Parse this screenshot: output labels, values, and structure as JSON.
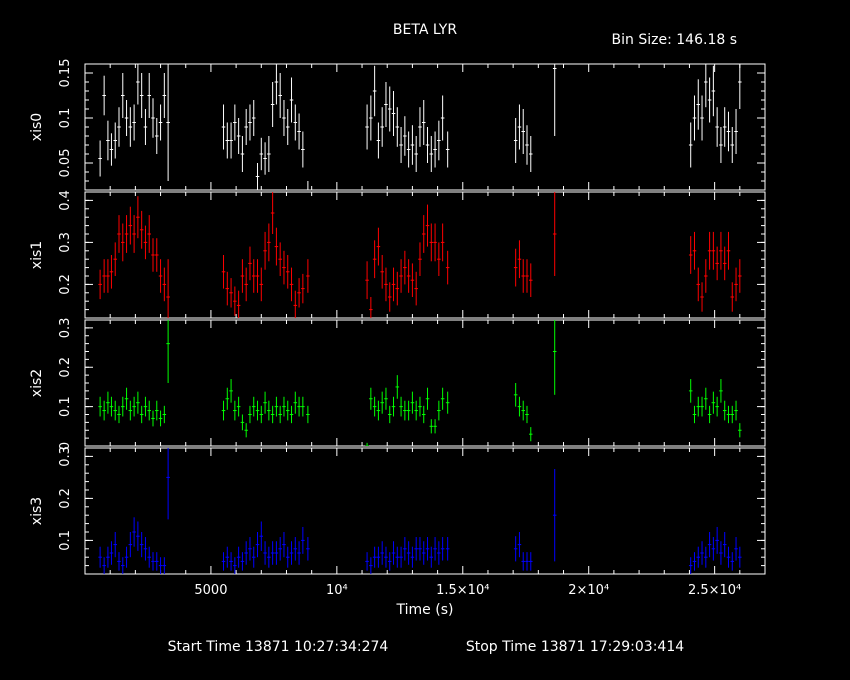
{
  "title": "BETA LYR",
  "bin_size_text": "Bin Size: 146.18 s",
  "footer": {
    "start": "Start Time 13871 10:27:34:274",
    "stop": "Stop Time 13871 17:29:03:414"
  },
  "chart_data": {
    "type": "scatter",
    "title": "BETA LYR",
    "xlabel": "Time (s)",
    "xlim": [
      0,
      27000
    ],
    "x_ticks": [
      {
        "value": 5000,
        "label": "5000"
      },
      {
        "value": 10000,
        "label": "10⁴"
      },
      {
        "value": 15000,
        "label": "1.5×10⁴"
      },
      {
        "value": 20000,
        "label": "2×10⁴"
      },
      {
        "value": 25000,
        "label": "2.5×10⁴"
      }
    ],
    "x_centers": [
      600,
      760,
      910,
      1050,
      1200,
      1350,
      1500,
      1650,
      1800,
      1950,
      2100,
      2250,
      2400,
      2550,
      2700,
      2850,
      3000,
      3150,
      3300,
      5500,
      5650,
      5800,
      5950,
      6100,
      6250,
      6400,
      6550,
      6700,
      6850,
      7000,
      7150,
      7300,
      7450,
      7600,
      7750,
      7900,
      8050,
      8200,
      8350,
      8500,
      8650,
      8850,
      11200,
      11350,
      11500,
      11650,
      11800,
      11950,
      12100,
      12250,
      12400,
      12550,
      12700,
      12850,
      13000,
      13150,
      13300,
      13450,
      13600,
      13750,
      13900,
      14050,
      14200,
      14400,
      17100,
      17250,
      17400,
      17550,
      17700,
      18650,
      24050,
      24200,
      24350,
      24500,
      24650,
      24800,
      24950,
      25100,
      25250,
      25400,
      25550,
      25700,
      25850,
      26000
    ],
    "panels": [
      {
        "name": "xis0",
        "color": "#ffffff",
        "ylim": [
          0.02,
          0.16
        ],
        "yticks": [
          {
            "value": 0.05,
            "label": "0.05"
          },
          {
            "value": 0.1,
            "label": "0.1"
          },
          {
            "value": 0.15,
            "label": "0.15"
          }
        ],
        "values": [
          0.055,
          0.125,
          0.075,
          0.065,
          0.075,
          0.09,
          0.125,
          0.1,
          0.09,
          0.095,
          0.14,
          0.125,
          0.09,
          0.125,
          0.1,
          0.08,
          0.095,
          0.125,
          0.095,
          0.09,
          0.075,
          0.075,
          0.095,
          0.08,
          0.06,
          0.09,
          0.095,
          0.1,
          0.035,
          0.06,
          0.055,
          0.06,
          0.115,
          0.14,
          0.125,
          0.1,
          0.09,
          0.12,
          0.095,
          0.085,
          0.065,
          0.02,
          0.09,
          0.1,
          0.13,
          0.075,
          0.09,
          0.115,
          0.11,
          0.105,
          0.09,
          0.07,
          0.08,
          0.065,
          0.07,
          0.06,
          0.09,
          0.095,
          0.07,
          0.06,
          0.065,
          0.075,
          0.1,
          0.065,
          0.075,
          0.09,
          0.085,
          0.07,
          0.06,
          0.155,
          0.07,
          0.1,
          0.115,
          0.1,
          0.14,
          0.12,
          0.13,
          0.09,
          0.07,
          0.09,
          0.085,
          0.07,
          0.085,
          0.14
        ],
        "errors": [
          0.02,
          0.022,
          0.022,
          0.018,
          0.02,
          0.022,
          0.025,
          0.02,
          0.022,
          0.02,
          0.025,
          0.025,
          0.02,
          0.025,
          0.022,
          0.02,
          0.02,
          0.025,
          0.065,
          0.025,
          0.02,
          0.02,
          0.02,
          0.02,
          0.02,
          0.02,
          0.02,
          0.02,
          0.015,
          0.018,
          0.018,
          0.02,
          0.025,
          0.025,
          0.025,
          0.02,
          0.02,
          0.025,
          0.02,
          0.02,
          0.02,
          0.01,
          0.025,
          0.025,
          0.028,
          0.02,
          0.022,
          0.025,
          0.025,
          0.025,
          0.022,
          0.02,
          0.022,
          0.02,
          0.022,
          0.02,
          0.022,
          0.025,
          0.02,
          0.02,
          0.02,
          0.022,
          0.025,
          0.02,
          0.025,
          0.025,
          0.025,
          0.022,
          0.02,
          0.075,
          0.025,
          0.025,
          0.028,
          0.025,
          0.028,
          0.025,
          0.028,
          0.022,
          0.02,
          0.022,
          0.022,
          0.02,
          0.025,
          0.03
        ]
      },
      {
        "name": "xis1",
        "color": "#ff0000",
        "ylim": [
          0.12,
          0.42
        ],
        "yticks": [
          {
            "value": 0.2,
            "label": "0.2"
          },
          {
            "value": 0.3,
            "label": "0.3"
          },
          {
            "value": 0.4,
            "label": "0.4"
          }
        ],
        "values": [
          0.2,
          0.22,
          0.22,
          0.23,
          0.26,
          0.32,
          0.3,
          0.32,
          0.34,
          0.32,
          0.36,
          0.33,
          0.3,
          0.32,
          0.27,
          0.27,
          0.22,
          0.2,
          0.17,
          0.23,
          0.19,
          0.18,
          0.16,
          0.15,
          0.22,
          0.2,
          0.25,
          0.22,
          0.22,
          0.2,
          0.28,
          0.3,
          0.37,
          0.29,
          0.26,
          0.24,
          0.23,
          0.2,
          0.15,
          0.18,
          0.19,
          0.22,
          0.21,
          0.14,
          0.26,
          0.29,
          0.23,
          0.2,
          0.17,
          0.2,
          0.19,
          0.22,
          0.24,
          0.22,
          0.21,
          0.19,
          0.26,
          0.32,
          0.34,
          0.3,
          0.3,
          0.26,
          0.3,
          0.24,
          0.24,
          0.26,
          0.22,
          0.22,
          0.21,
          0.32,
          0.27,
          0.28,
          0.2,
          0.17,
          0.22,
          0.28,
          0.28,
          0.25,
          0.28,
          0.25,
          0.28,
          0.17,
          0.2,
          0.22
        ],
        "errors": [
          0.035,
          0.04,
          0.04,
          0.04,
          0.04,
          0.045,
          0.045,
          0.045,
          0.045,
          0.045,
          0.05,
          0.045,
          0.04,
          0.045,
          0.04,
          0.04,
          0.04,
          0.04,
          0.09,
          0.04,
          0.04,
          0.035,
          0.035,
          0.035,
          0.04,
          0.04,
          0.04,
          0.04,
          0.04,
          0.04,
          0.045,
          0.045,
          0.05,
          0.045,
          0.04,
          0.04,
          0.04,
          0.04,
          0.035,
          0.035,
          0.035,
          0.04,
          0.045,
          0.03,
          0.045,
          0.045,
          0.04,
          0.04,
          0.035,
          0.04,
          0.04,
          0.04,
          0.04,
          0.04,
          0.04,
          0.04,
          0.04,
          0.045,
          0.05,
          0.045,
          0.045,
          0.04,
          0.045,
          0.04,
          0.045,
          0.045,
          0.04,
          0.04,
          0.04,
          0.1,
          0.045,
          0.045,
          0.04,
          0.035,
          0.04,
          0.045,
          0.045,
          0.04,
          0.045,
          0.04,
          0.045,
          0.035,
          0.04,
          0.04
        ]
      },
      {
        "name": "xis2",
        "color": "#00ff00",
        "ylim": [
          0.0,
          0.32
        ],
        "yticks": [
          {
            "value": 0.0,
            "label": "0"
          },
          {
            "value": 0.1,
            "label": "0.1"
          },
          {
            "value": 0.2,
            "label": "0.2"
          },
          {
            "value": 0.3,
            "label": "0.3"
          }
        ],
        "values": [
          0.1,
          0.09,
          0.11,
          0.1,
          0.09,
          0.08,
          0.1,
          0.12,
          0.09,
          0.1,
          0.11,
          0.08,
          0.1,
          0.09,
          0.07,
          0.09,
          0.07,
          0.08,
          0.26,
          0.09,
          0.12,
          0.14,
          0.09,
          0.1,
          0.06,
          0.04,
          0.08,
          0.1,
          0.09,
          0.08,
          0.11,
          0.09,
          0.08,
          0.1,
          0.08,
          0.1,
          0.09,
          0.08,
          0.11,
          0.1,
          0.1,
          0.08,
          0.0,
          0.12,
          0.1,
          0.09,
          0.11,
          0.12,
          0.08,
          0.1,
          0.15,
          0.1,
          0.09,
          0.09,
          0.11,
          0.09,
          0.1,
          0.08,
          0.12,
          0.05,
          0.05,
          0.09,
          0.12,
          0.11,
          0.13,
          0.1,
          0.09,
          0.08,
          0.03,
          0.24,
          0.14,
          0.08,
          0.1,
          0.1,
          0.12,
          0.08,
          0.11,
          0.1,
          0.14,
          0.09,
          0.08,
          0.08,
          0.09,
          0.04
        ],
        "errors": [
          0.025,
          0.025,
          0.028,
          0.025,
          0.025,
          0.022,
          0.025,
          0.028,
          0.025,
          0.025,
          0.028,
          0.022,
          0.025,
          0.025,
          0.02,
          0.025,
          0.02,
          0.022,
          0.1,
          0.025,
          0.028,
          0.03,
          0.025,
          0.025,
          0.02,
          0.018,
          0.022,
          0.025,
          0.025,
          0.022,
          0.028,
          0.025,
          0.022,
          0.025,
          0.022,
          0.025,
          0.025,
          0.022,
          0.028,
          0.025,
          0.025,
          0.022,
          0.008,
          0.028,
          0.025,
          0.025,
          0.028,
          0.028,
          0.022,
          0.025,
          0.03,
          0.025,
          0.025,
          0.025,
          0.028,
          0.025,
          0.025,
          0.022,
          0.028,
          0.018,
          0.018,
          0.025,
          0.028,
          0.028,
          0.03,
          0.025,
          0.025,
          0.022,
          0.018,
          0.11,
          0.03,
          0.022,
          0.025,
          0.025,
          0.028,
          0.022,
          0.028,
          0.025,
          0.03,
          0.025,
          0.022,
          0.022,
          0.025,
          0.018
        ]
      },
      {
        "name": "xis3",
        "color": "#0000ff",
        "ylim": [
          0.02,
          0.32
        ],
        "yticks": [
          {
            "value": 0.1,
            "label": "0.1"
          },
          {
            "value": 0.2,
            "label": "0.2"
          },
          {
            "value": 0.3,
            "label": "0.3"
          }
        ],
        "values": [
          0.06,
          0.04,
          0.06,
          0.07,
          0.09,
          0.05,
          0.04,
          0.06,
          0.09,
          0.12,
          0.11,
          0.09,
          0.08,
          0.06,
          0.05,
          0.05,
          0.04,
          0.04,
          0.25,
          0.05,
          0.06,
          0.05,
          0.04,
          0.06,
          0.05,
          0.07,
          0.08,
          0.06,
          0.09,
          0.11,
          0.07,
          0.06,
          0.07,
          0.07,
          0.08,
          0.09,
          0.06,
          0.07,
          0.08,
          0.07,
          0.1,
          0.08,
          0.05,
          0.04,
          0.06,
          0.06,
          0.07,
          0.06,
          0.05,
          0.07,
          0.06,
          0.06,
          0.08,
          0.07,
          0.06,
          0.08,
          0.08,
          0.07,
          0.08,
          0.06,
          0.08,
          0.07,
          0.08,
          0.08,
          0.08,
          0.09,
          0.05,
          0.05,
          0.05,
          0.16,
          0.04,
          0.05,
          0.06,
          0.07,
          0.06,
          0.09,
          0.08,
          0.1,
          0.07,
          0.09,
          0.06,
          0.05,
          0.08,
          0.06
        ],
        "errors": [
          0.025,
          0.02,
          0.025,
          0.028,
          0.03,
          0.022,
          0.02,
          0.025,
          0.03,
          0.035,
          0.035,
          0.03,
          0.028,
          0.025,
          0.022,
          0.022,
          0.02,
          0.02,
          0.1,
          0.022,
          0.025,
          0.022,
          0.02,
          0.025,
          0.022,
          0.028,
          0.028,
          0.025,
          0.03,
          0.035,
          0.028,
          0.025,
          0.028,
          0.028,
          0.028,
          0.03,
          0.025,
          0.028,
          0.028,
          0.028,
          0.032,
          0.028,
          0.022,
          0.02,
          0.025,
          0.025,
          0.028,
          0.025,
          0.022,
          0.028,
          0.025,
          0.025,
          0.028,
          0.028,
          0.025,
          0.028,
          0.028,
          0.028,
          0.028,
          0.025,
          0.028,
          0.028,
          0.028,
          0.028,
          0.03,
          0.03,
          0.022,
          0.022,
          0.022,
          0.11,
          0.02,
          0.022,
          0.025,
          0.028,
          0.025,
          0.03,
          0.028,
          0.032,
          0.028,
          0.03,
          0.025,
          0.022,
          0.028,
          0.025
        ]
      }
    ]
  }
}
